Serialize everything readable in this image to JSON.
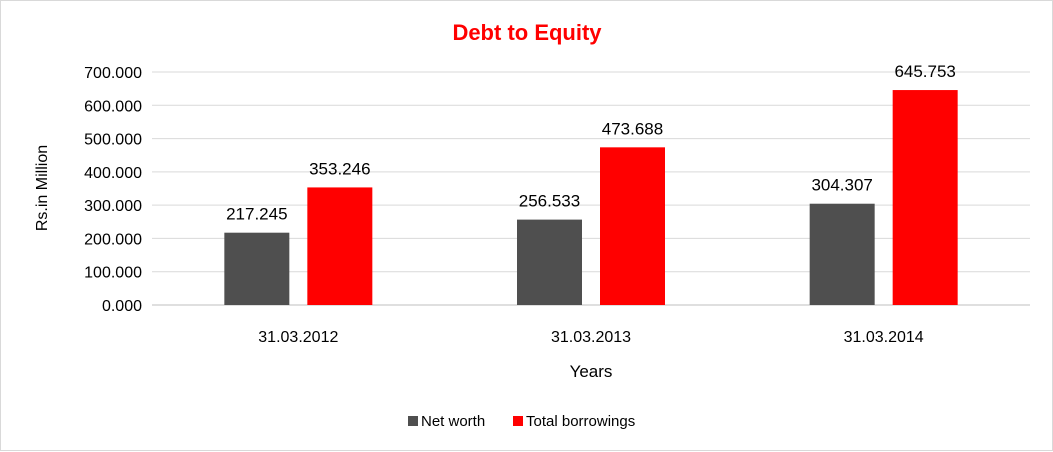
{
  "chart_data": {
    "type": "bar",
    "title": "Debt to Equity",
    "xlabel": "Years",
    "ylabel": "Rs.in Million",
    "categories": [
      "31.03.2012",
      "31.03.2013",
      "31.03.2014"
    ],
    "series": [
      {
        "name": "Net worth",
        "values": [
          217.245,
          256.533,
          304.307
        ],
        "color": "#4f4f4f",
        "labels": [
          "217.245",
          "256.533",
          "304.307"
        ]
      },
      {
        "name": "Total borrowings",
        "values": [
          353.246,
          473.688,
          645.753
        ],
        "color": "#ff0000",
        "labels": [
          "353.246",
          "473.688",
          "645.753"
        ]
      }
    ],
    "ylim": [
      0,
      700
    ],
    "yticks": [
      0,
      100,
      200,
      300,
      400,
      500,
      600,
      700
    ],
    "ytick_labels": [
      "0.000",
      "100.000",
      "200.000",
      "300.000",
      "400.000",
      "500.000",
      "600.000",
      "700.000"
    ],
    "grid": true,
    "legend_position": "bottom",
    "title_color": "#ff0000"
  }
}
